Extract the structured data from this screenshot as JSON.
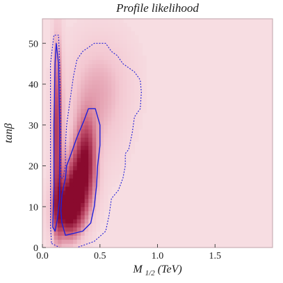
{
  "chart_data": {
    "type": "heatmap",
    "title": "Profile likelihood",
    "xlabel": "M",
    "xlabel_subscript": "1/2",
    "xlabel_unit": " (TeV)",
    "ylabel": "tanβ",
    "xlim": [
      0.0,
      2.0
    ],
    "ylim": [
      0,
      56
    ],
    "x_ticks": [
      0.0,
      0.5,
      1.0,
      1.5
    ],
    "x_tick_labels": [
      "0.0",
      "0.5",
      "1.0",
      "1.5"
    ],
    "y_ticks": [
      0,
      10,
      20,
      30,
      40,
      50
    ],
    "y_tick_labels": [
      "0",
      "10",
      "20",
      "30",
      "40",
      "50"
    ],
    "grid": false,
    "colors": {
      "background": "#f7dde2",
      "low": "#f3c7d1",
      "mid": "#c85a76",
      "high": "#8a0a2e",
      "contour": "#2020d8"
    },
    "density_blobs": [
      {
        "x": 0.22,
        "y": 9,
        "sx": 0.09,
        "sy": 5,
        "w": 1.0
      },
      {
        "x": 0.32,
        "y": 16,
        "sx": 0.09,
        "sy": 6,
        "w": 0.85
      },
      {
        "x": 0.38,
        "y": 24,
        "sx": 0.06,
        "sy": 6,
        "w": 0.55
      },
      {
        "x": 0.13,
        "y": 28,
        "sx": 0.03,
        "sy": 16,
        "w": 0.75
      },
      {
        "x": 0.45,
        "y": 34,
        "sx": 0.18,
        "sy": 10,
        "w": 0.25
      },
      {
        "x": 0.55,
        "y": 42,
        "sx": 0.2,
        "sy": 8,
        "w": 0.12
      }
    ],
    "contour_68_main": [
      [
        0.2,
        3
      ],
      [
        0.35,
        4
      ],
      [
        0.42,
        6
      ],
      [
        0.45,
        10
      ],
      [
        0.47,
        15
      ],
      [
        0.48,
        20
      ],
      [
        0.5,
        25
      ],
      [
        0.5,
        30
      ],
      [
        0.46,
        34
      ],
      [
        0.4,
        34
      ],
      [
        0.36,
        31
      ],
      [
        0.3,
        27
      ],
      [
        0.25,
        23
      ],
      [
        0.21,
        20
      ],
      [
        0.2,
        17
      ],
      [
        0.17,
        13
      ],
      [
        0.16,
        9
      ],
      [
        0.17,
        6
      ]
    ],
    "contour_68_strip": [
      [
        0.09,
        5
      ],
      [
        0.1,
        15
      ],
      [
        0.1,
        30
      ],
      [
        0.11,
        45
      ],
      [
        0.12,
        50
      ],
      [
        0.14,
        45
      ],
      [
        0.15,
        30
      ],
      [
        0.15,
        18
      ],
      [
        0.15,
        12
      ],
      [
        0.13,
        7
      ],
      [
        0.11,
        4
      ]
    ],
    "contour_95": [
      [
        0.08,
        1
      ],
      [
        0.15,
        0
      ],
      [
        0.3,
        0
      ],
      [
        0.45,
        1.5
      ],
      [
        0.55,
        4
      ],
      [
        0.58,
        8
      ],
      [
        0.6,
        12
      ],
      [
        0.66,
        14
      ],
      [
        0.7,
        17
      ],
      [
        0.72,
        20
      ],
      [
        0.72,
        23
      ],
      [
        0.75,
        24
      ],
      [
        0.78,
        28
      ],
      [
        0.8,
        32
      ],
      [
        0.85,
        34
      ],
      [
        0.86,
        38
      ],
      [
        0.85,
        41
      ],
      [
        0.8,
        43
      ],
      [
        0.7,
        45
      ],
      [
        0.65,
        47
      ],
      [
        0.6,
        48
      ],
      [
        0.55,
        50
      ],
      [
        0.45,
        50
      ],
      [
        0.35,
        48
      ],
      [
        0.3,
        46
      ],
      [
        0.27,
        42
      ],
      [
        0.24,
        36
      ],
      [
        0.21,
        30
      ],
      [
        0.2,
        25
      ],
      [
        0.2,
        20
      ],
      [
        0.18,
        17
      ],
      [
        0.16,
        17
      ],
      [
        0.16,
        30
      ],
      [
        0.15,
        45
      ],
      [
        0.14,
        52
      ],
      [
        0.1,
        52
      ],
      [
        0.07,
        45
      ],
      [
        0.07,
        30
      ],
      [
        0.07,
        15
      ],
      [
        0.07,
        5
      ]
    ]
  }
}
